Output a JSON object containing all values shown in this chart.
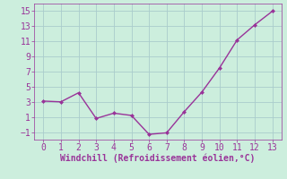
{
  "x": [
    0,
    1,
    2,
    3,
    4,
    5,
    6,
    7,
    8,
    9,
    10,
    11,
    12,
    13
  ],
  "y": [
    3.1,
    3.0,
    4.2,
    0.8,
    1.5,
    1.2,
    -1.3,
    -1.1,
    1.7,
    4.3,
    7.5,
    11.2,
    13.2,
    15.0
  ],
  "line_color": "#993399",
  "marker": "D",
  "marker_size": 2,
  "linewidth": 1.0,
  "xlabel": "Windchill (Refroidissement éolien,°C)",
  "xlabel_fontsize": 7,
  "xlim": [
    -0.5,
    13.5
  ],
  "ylim": [
    -2,
    16
  ],
  "yticks": [
    -1,
    1,
    3,
    5,
    7,
    9,
    11,
    13,
    15
  ],
  "xticks": [
    0,
    1,
    2,
    3,
    4,
    5,
    6,
    7,
    8,
    9,
    10,
    11,
    12,
    13
  ],
  "background_color": "#cceedd",
  "grid_color": "#aacccc",
  "tick_color": "#993399",
  "tick_fontsize": 7,
  "grid_linewidth": 0.6
}
